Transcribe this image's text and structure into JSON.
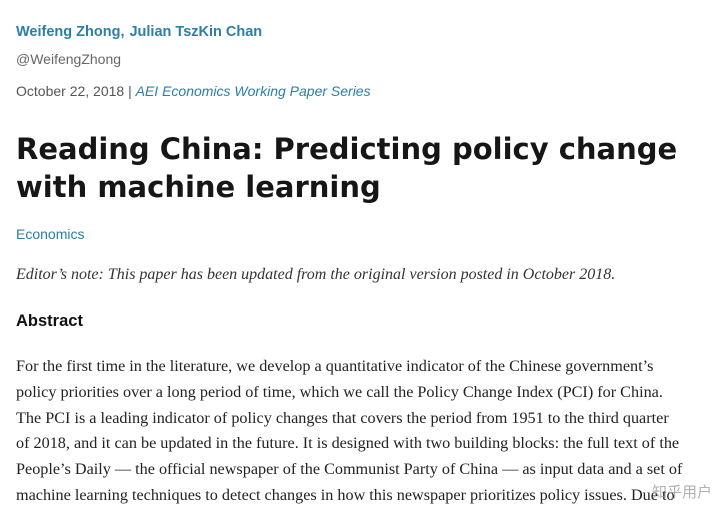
{
  "authors": {
    "first": "Weifeng Zhong",
    "separator": ",",
    "second": "Julian TszKin Chan"
  },
  "handle": "@WeifengZhong",
  "date": "October 22, 2018",
  "date_separator": " | ",
  "series": "AEI Economics Working Paper Series",
  "title": "Reading China: Predicting policy change with machine learning",
  "category": "Economics",
  "editor_note": "Editor’s note: This paper has been updated from the original version posted in October 2018.",
  "abstract_heading": "Abstract",
  "abstract_lines": [
    "For the first time in the literature, we develop a quantitative indicator of the Chinese government’s",
    "policy priorities over a long period of time, which we call the Policy Change Index (PCI) for China.",
    "The PCI is a leading indicator of policy changes that covers the period from 1951 to the third quarter",
    "of 2018, and it can be updated in the future. It is designed with two building blocks: the full text of the",
    "People’s Daily — the official newspaper of the Communist Party of China — as input data and a set of",
    "machine learning techniques to detect changes in how this newspaper prioritizes policy issues. Due to"
  ],
  "watermark": "知乎用户"
}
